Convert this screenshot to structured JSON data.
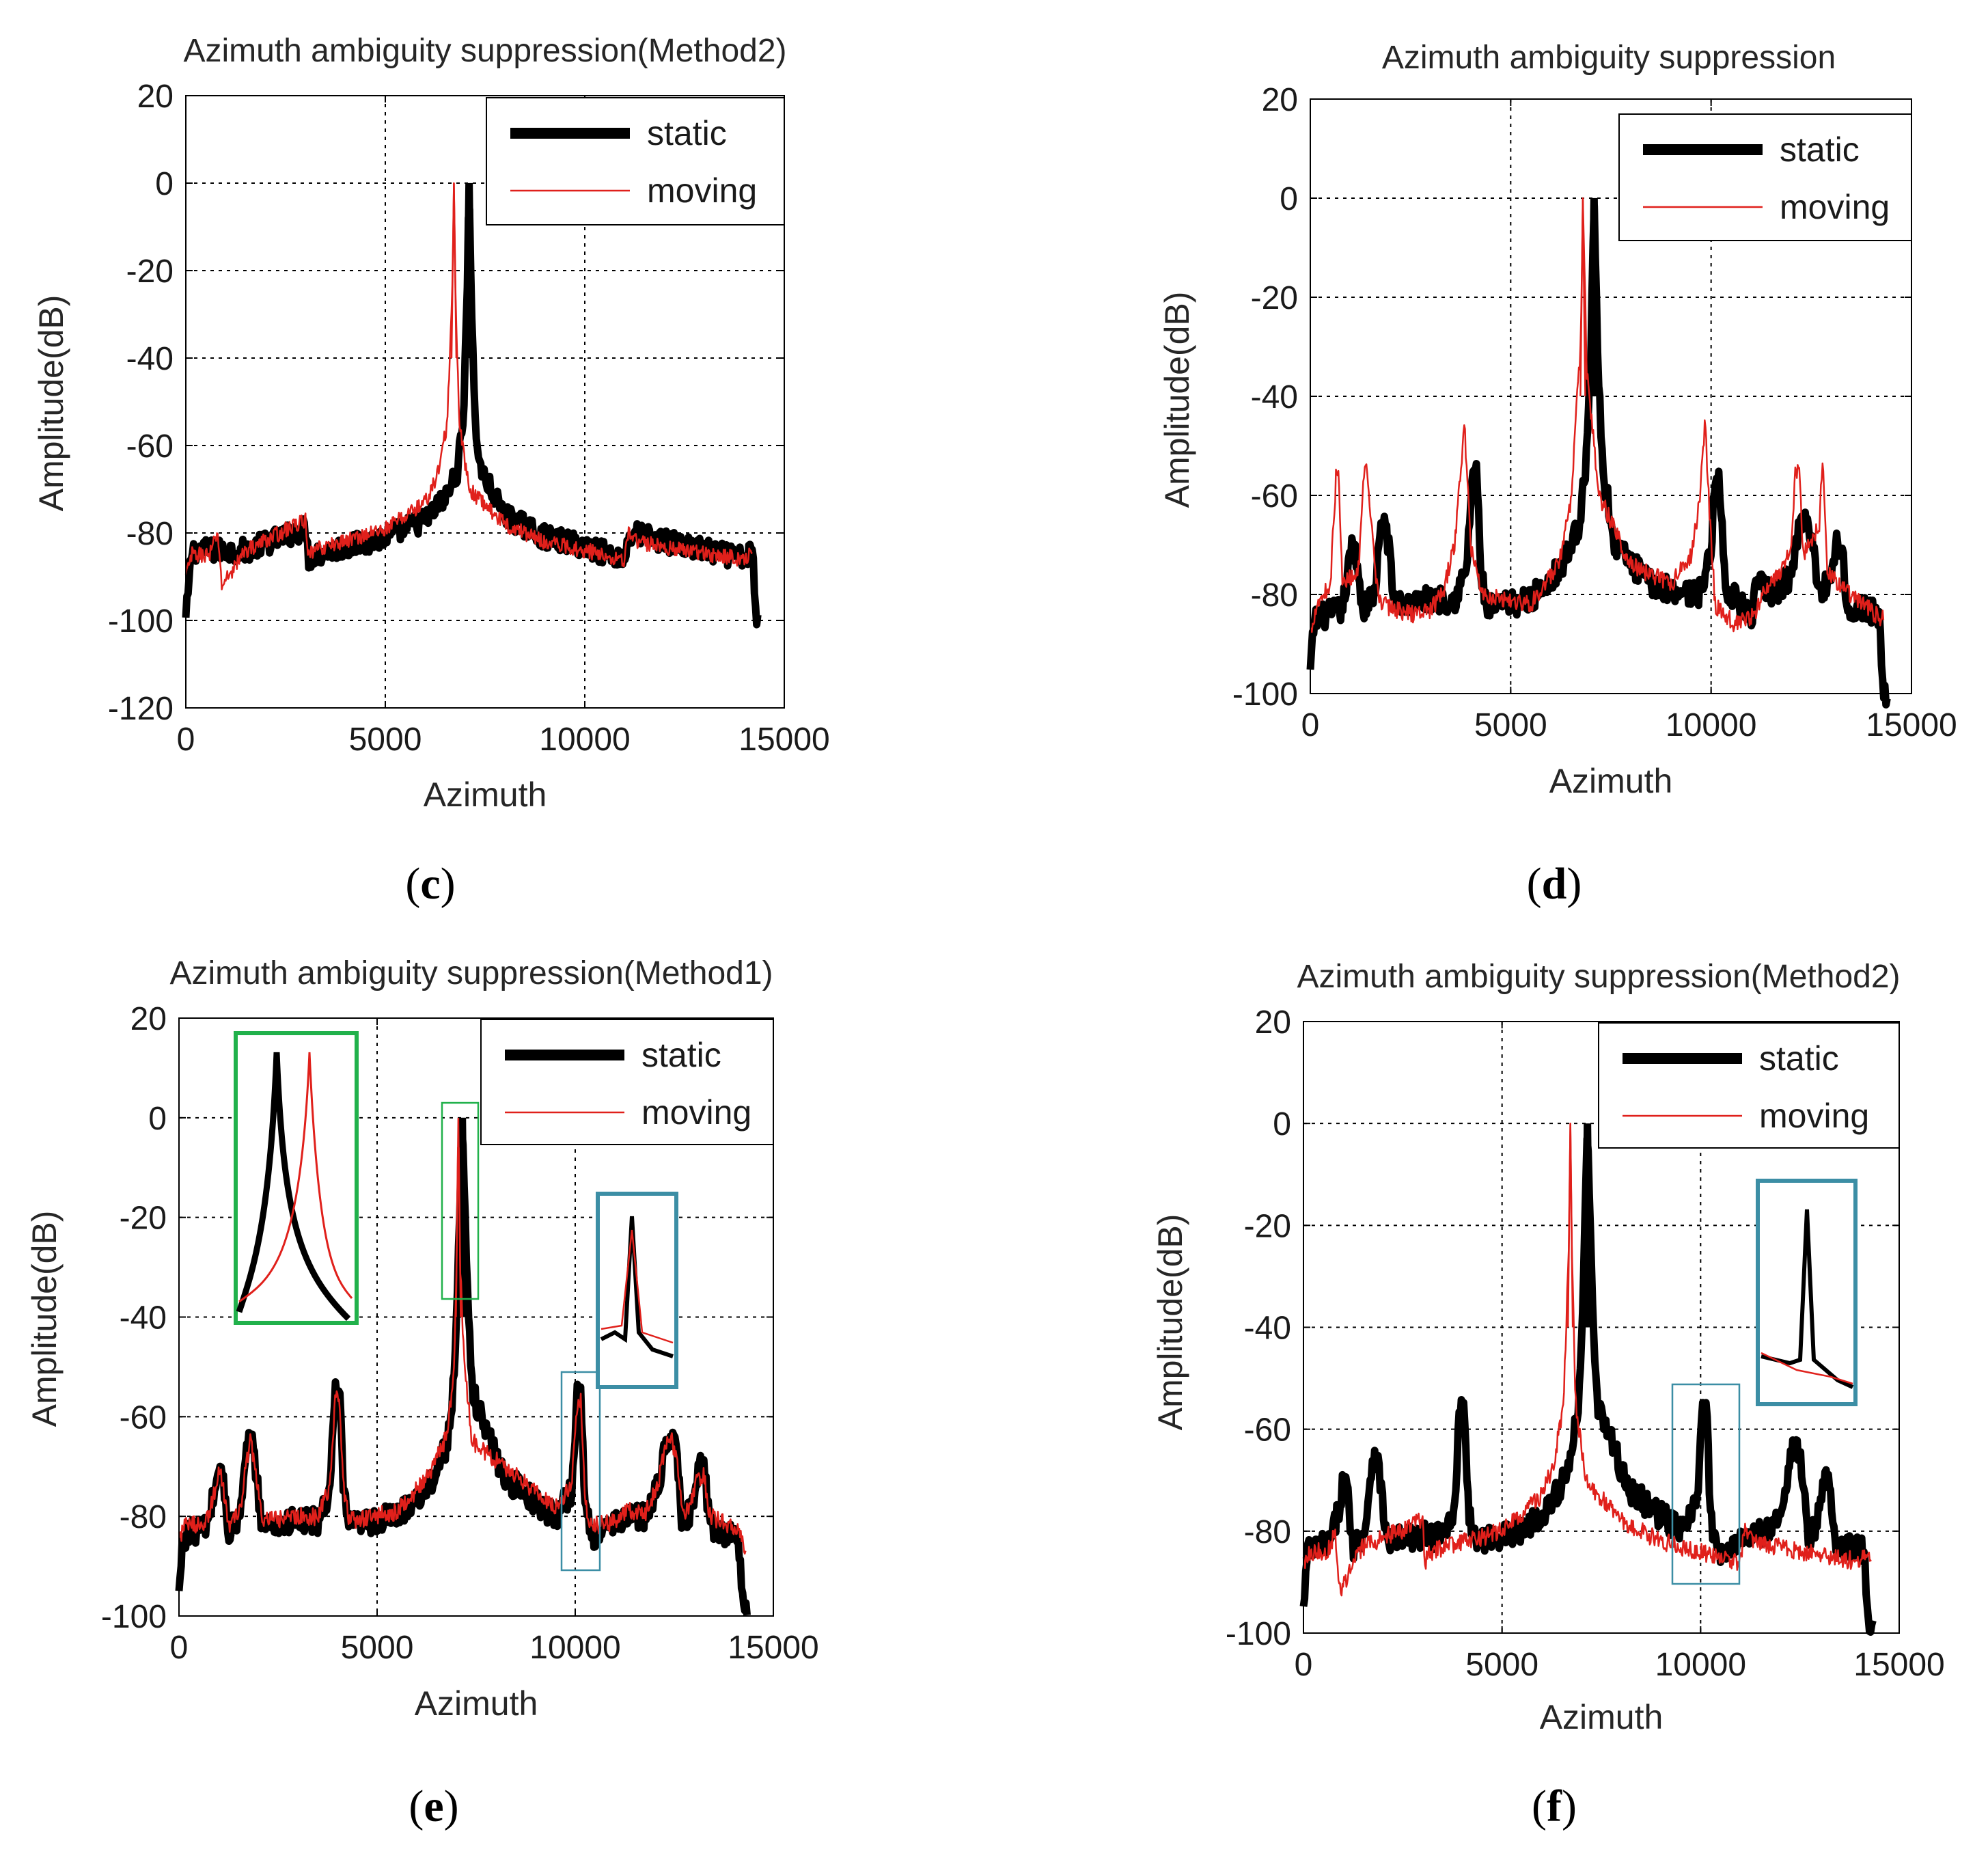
{
  "chart_data": [
    {
      "id": "c",
      "type": "line",
      "caption": "c",
      "title": "Azimuth ambiguity suppression(Method2)",
      "xlabel": "Azimuth",
      "ylabel": "Amplitude(dB)",
      "xlim": [
        0,
        15000
      ],
      "ylim": [
        -120,
        20
      ],
      "xticks": [
        0,
        5000,
        10000,
        15000
      ],
      "yticks": [
        -120,
        -100,
        -80,
        -60,
        -40,
        -20,
        0,
        20
      ],
      "xtick_labels": [
        "0",
        "5000",
        "10000",
        "15000"
      ],
      "ytick_labels": [
        "-120",
        "-100",
        "-80",
        "-60",
        "-40",
        "-20",
        "0",
        "20"
      ],
      "grid": true,
      "legend_position": "top-right",
      "series": [
        {
          "name": "static",
          "color": "#000000",
          "style": "thick",
          "x": [
            0,
            150,
            1500,
            3000,
            3080,
            3200,
            5000,
            6000,
            6500,
            6800,
            6950,
            7050,
            7100,
            7150,
            7250,
            7400,
            8000,
            9000,
            10000,
            11000,
            11100,
            11200,
            12500,
            14000,
            14200,
            14300,
            14350
          ],
          "y": [
            -100,
            -84,
            -84,
            -79,
            -86,
            -85,
            -81,
            -77,
            -72,
            -66,
            -55,
            -25,
            0,
            -25,
            -55,
            -66,
            -76,
            -81,
            -83,
            -86,
            -81,
            -80,
            -83,
            -86,
            -84,
            -100,
            -100
          ]
        },
        {
          "name": "moving",
          "color": "#e0201b",
          "style": "thin",
          "x": [
            0,
            150,
            600,
            800,
            900,
            1500,
            3000,
            3050,
            3200,
            5000,
            6000,
            6300,
            6550,
            6680,
            6720,
            6760,
            6850,
            7100,
            8000,
            9000,
            10000,
            11000,
            11100,
            11300,
            12500,
            14000,
            14200
          ],
          "y": [
            -90,
            -85,
            -85,
            -80,
            -92,
            -84,
            -77,
            -86,
            -84,
            -79,
            -73,
            -67,
            -55,
            -25,
            0,
            -25,
            -55,
            -70,
            -78,
            -82,
            -84,
            -86,
            -80,
            -82,
            -84,
            -86,
            -84
          ]
        }
      ]
    },
    {
      "id": "d",
      "type": "line",
      "caption": "d",
      "title": "Azimuth ambiguity suppression",
      "xlabel": "Azimuth",
      "ylabel": "Amplitude(dB)",
      "xlim": [
        0,
        15000
      ],
      "ylim": [
        -100,
        20
      ],
      "xticks": [
        0,
        5000,
        10000,
        15000
      ],
      "yticks": [
        -100,
        -80,
        -60,
        -40,
        -20,
        0,
        20
      ],
      "xtick_labels": [
        "0",
        "5000",
        "10000",
        "15000"
      ],
      "ytick_labels": [
        "-100",
        "-80",
        "-60",
        "-40",
        "-20",
        "0",
        "20"
      ],
      "grid": true,
      "legend_position": "top-right",
      "series": [
        {
          "name": "static",
          "color": "#000000",
          "style": "thick",
          "x": [
            0,
            100,
            800,
            950,
            1050,
            1150,
            1300,
            1600,
            1750,
            1850,
            1950,
            2100,
            3000,
            3600,
            3900,
            4050,
            4150,
            4250,
            4400,
            5500,
            6300,
            6700,
            6900,
            7000,
            7080,
            7160,
            7300,
            7600,
            8500,
            9700,
            10000,
            10100,
            10200,
            10350,
            11000,
            11100,
            11200,
            11600,
            12000,
            12200,
            12400,
            12500,
            12700,
            12950,
            13100,
            13250,
            13400,
            14200,
            14300,
            14400
          ],
          "y": [
            -96,
            -85,
            -83,
            -75,
            -70,
            -72,
            -83,
            -80,
            -68,
            -64,
            -70,
            -82,
            -81,
            -81,
            -75,
            -55,
            -55,
            -75,
            -83,
            -81,
            -74,
            -66,
            -52,
            -30,
            0,
            -30,
            -55,
            -70,
            -78,
            -80,
            -72,
            -55,
            -57,
            -78,
            -85,
            -80,
            -78,
            -80,
            -76,
            -66,
            -64,
            -68,
            -80,
            -77,
            -70,
            -70,
            -82,
            -84,
            -100,
            -100
          ]
        },
        {
          "name": "moving",
          "color": "#e0201b",
          "style": "thin",
          "x": [
            0,
            150,
            500,
            650,
            700,
            800,
            1200,
            1350,
            1400,
            1650,
            1800,
            2500,
            3000,
            3300,
            3600,
            3750,
            3850,
            4000,
            4300,
            5500,
            6200,
            6500,
            6650,
            6750,
            6800,
            6900,
            7200,
            8000,
            9000,
            9500,
            9700,
            9850,
            9950,
            10100,
            10600,
            11000,
            11300,
            11700,
            12000,
            12100,
            12200,
            12300,
            12700,
            12750,
            12800,
            12900,
            13500,
            14100,
            14300
          ],
          "y": [
            -88,
            -82,
            -78,
            -55,
            -55,
            -78,
            -75,
            -55,
            -55,
            -78,
            -82,
            -84,
            -83,
            -80,
            -70,
            -55,
            -46,
            -70,
            -80,
            -82,
            -74,
            -62,
            -40,
            -30,
            0,
            -35,
            -60,
            -74,
            -78,
            -72,
            -62,
            -45,
            -62,
            -82,
            -86,
            -85,
            -80,
            -76,
            -70,
            -55,
            -55,
            -72,
            -66,
            -55,
            -55,
            -76,
            -80,
            -84,
            -85
          ]
        }
      ]
    },
    {
      "id": "e",
      "type": "line",
      "caption": "e",
      "title": "Azimuth ambiguity suppression(Method1)",
      "xlabel": "Azimuth",
      "ylabel": "Amplitude(dB)",
      "xlim": [
        0,
        15000
      ],
      "ylim": [
        -100,
        20
      ],
      "xticks": [
        0,
        5000,
        10000,
        15000
      ],
      "yticks": [
        -100,
        -80,
        -60,
        -40,
        -20,
        0,
        20
      ],
      "xtick_labels": [
        "0",
        "5000",
        "10000",
        "15000"
      ],
      "ytick_labels": [
        "-100",
        "-80",
        "-60",
        "-40",
        "-20",
        "0",
        "20"
      ],
      "grid": true,
      "legend_position": "top-right",
      "series": [
        {
          "name": "static",
          "color": "#000000",
          "style": "thick",
          "x": [
            0,
            100,
            700,
            900,
            1000,
            1100,
            1250,
            1550,
            1700,
            1800,
            1900,
            2100,
            3000,
            3500,
            3800,
            3950,
            4050,
            4150,
            4300,
            5500,
            6300,
            6750,
            6950,
            7050,
            7150,
            7250,
            7400,
            8200,
            9500,
            9900,
            10050,
            10150,
            10250,
            10400,
            11000,
            11200,
            11800,
            12100,
            12300,
            12450,
            12600,
            12700,
            12950,
            13100,
            13250,
            13400,
            14100,
            14250,
            14350
          ],
          "y": [
            -96,
            -84,
            -82,
            -75,
            -70,
            -72,
            -83,
            -80,
            -68,
            -64,
            -68,
            -82,
            -81,
            -81,
            -75,
            -55,
            -55,
            -75,
            -82,
            -80,
            -74,
            -66,
            -52,
            -30,
            0,
            -30,
            -55,
            -72,
            -80,
            -75,
            -56,
            -56,
            -78,
            -84,
            -82,
            -80,
            -80,
            -74,
            -64,
            -64,
            -70,
            -82,
            -78,
            -70,
            -70,
            -82,
            -84,
            -98,
            -98
          ]
        },
        {
          "name": "moving",
          "color": "#e0201b",
          "style": "thin",
          "x": [
            0,
            150,
            700,
            900,
            1000,
            1100,
            1250,
            1550,
            1700,
            1800,
            1900,
            2100,
            3000,
            3500,
            3800,
            3950,
            4050,
            4150,
            4300,
            5500,
            6300,
            6750,
            6950,
            7000,
            7050,
            7100,
            7200,
            7400,
            8200,
            9500,
            9900,
            10050,
            10150,
            10250,
            10400,
            11000,
            11200,
            11800,
            12100,
            12300,
            12450,
            12600,
            12700,
            12950,
            13100,
            13250,
            13400,
            14000,
            14300
          ],
          "y": [
            -84,
            -82,
            -81,
            -75,
            -71,
            -73,
            -82,
            -79,
            -69,
            -65,
            -69,
            -81,
            -80,
            -80,
            -74,
            -56,
            -56,
            -74,
            -81,
            -79,
            -72,
            -64,
            -50,
            -30,
            0,
            -30,
            -50,
            -65,
            -70,
            -78,
            -74,
            -57,
            -57,
            -77,
            -82,
            -81,
            -79,
            -79,
            -73,
            -65,
            -65,
            -71,
            -80,
            -77,
            -72,
            -72,
            -80,
            -82,
            -86
          ]
        }
      ]
    },
    {
      "id": "f",
      "type": "line",
      "caption": "f",
      "title": "Azimuth ambiguity suppression(Method2)",
      "xlabel": "Azimuth",
      "ylabel": "Amplitude(dB)",
      "xlim": [
        0,
        15000
      ],
      "ylim": [
        -100,
        20
      ],
      "xticks": [
        0,
        5000,
        10000,
        15000
      ],
      "yticks": [
        -100,
        -80,
        -60,
        -40,
        -20,
        0,
        20
      ],
      "xtick_labels": [
        "0",
        "5000",
        "10000",
        "15000"
      ],
      "ytick_labels": [
        "-100",
        "-80",
        "-60",
        "-40",
        "-20",
        "0",
        "20"
      ],
      "grid": true,
      "legend_position": "top-right",
      "series": [
        {
          "name": "static",
          "color": "#000000",
          "style": "thick",
          "x": [
            0,
            100,
            700,
            900,
            1000,
            1100,
            1250,
            1550,
            1700,
            1800,
            1900,
            2100,
            3000,
            3500,
            3800,
            3950,
            4050,
            4150,
            4300,
            5500,
            6300,
            6750,
            6950,
            7050,
            7150,
            7250,
            7400,
            8200,
            9500,
            9900,
            10050,
            10150,
            10250,
            10400,
            11000,
            11200,
            11800,
            12100,
            12300,
            12450,
            12600,
            12700,
            12950,
            13100,
            13250,
            13400,
            14100,
            14250,
            14350
          ],
          "y": [
            -96,
            -84,
            -82,
            -75,
            -70,
            -72,
            -83,
            -80,
            -68,
            -64,
            -68,
            -82,
            -81,
            -81,
            -75,
            -55,
            -55,
            -75,
            -82,
            -80,
            -74,
            -66,
            -52,
            -30,
            0,
            -30,
            -55,
            -72,
            -80,
            -75,
            -56,
            -56,
            -78,
            -84,
            -82,
            -80,
            -80,
            -74,
            -64,
            -64,
            -70,
            -82,
            -78,
            -70,
            -70,
            -82,
            -84,
            -100,
            -100
          ]
        },
        {
          "name": "moving",
          "color": "#e0201b",
          "style": "thin",
          "x": [
            0,
            150,
            600,
            800,
            900,
            1500,
            3000,
            3050,
            3200,
            5000,
            6000,
            6300,
            6550,
            6680,
            6720,
            6760,
            6850,
            7100,
            8000,
            9000,
            10000,
            11000,
            11100,
            11300,
            12500,
            14000,
            14300
          ],
          "y": [
            -86,
            -84,
            -84,
            -80,
            -92,
            -83,
            -78,
            -86,
            -84,
            -80,
            -73,
            -67,
            -55,
            -25,
            0,
            -25,
            -55,
            -70,
            -78,
            -82,
            -84,
            -86,
            -80,
            -82,
            -84,
            -86,
            -84
          ]
        }
      ]
    }
  ],
  "legend": {
    "static": "static",
    "moving": "moving"
  },
  "colors": {
    "static": "#000000",
    "moving": "#e0201b",
    "inset_green": "#21b14b",
    "inset_teal": "#3c8ea5"
  }
}
